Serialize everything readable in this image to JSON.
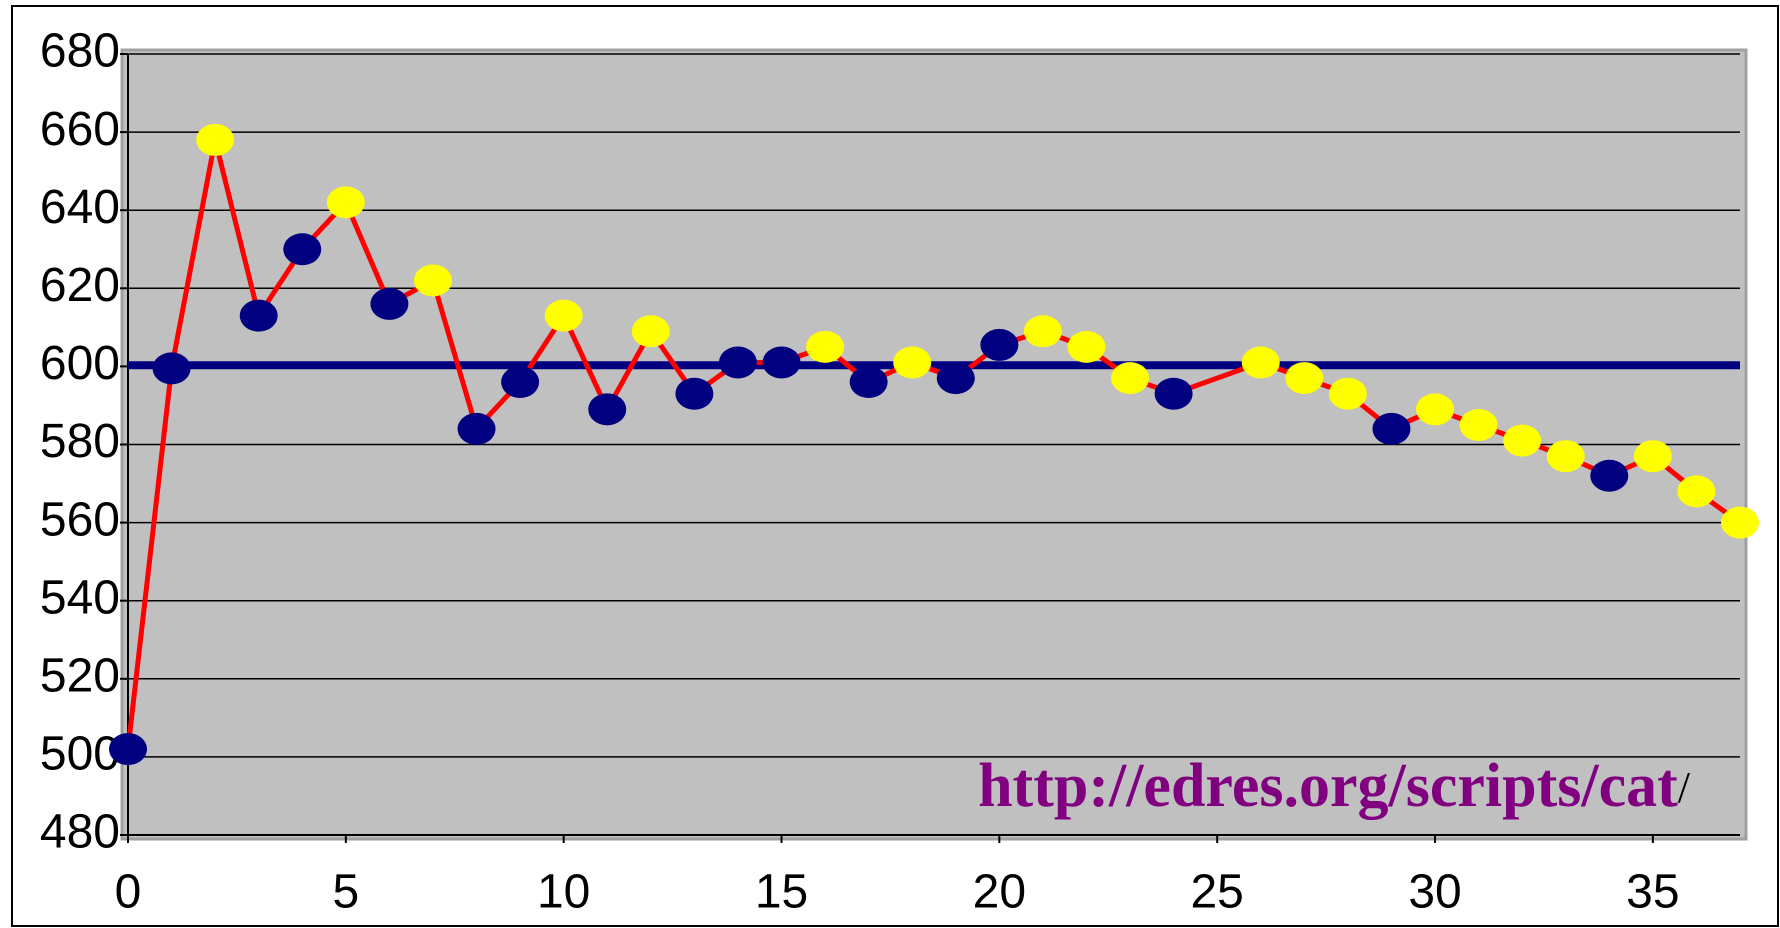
{
  "chart_data": {
    "type": "line",
    "x": [
      0,
      1,
      2,
      3,
      4,
      5,
      6,
      7,
      8,
      9,
      10,
      11,
      12,
      13,
      14,
      15,
      16,
      17,
      18,
      19,
      20,
      21,
      22,
      23,
      24,
      26,
      27,
      28,
      29,
      30,
      31,
      32,
      33,
      34,
      35,
      36,
      37
    ],
    "series": [
      {
        "color": "#ff0000",
        "values": [
          502,
          599.5,
          658,
          613,
          630,
          642,
          616,
          622,
          584,
          596,
          613,
          589,
          609,
          593,
          601,
          601,
          605,
          596,
          601,
          597,
          605.5,
          609,
          605,
          597,
          593,
          601,
          597,
          593,
          584,
          589,
          585,
          581,
          577,
          572,
          577,
          568,
          560
        ],
        "point_colors": [
          "#000080",
          "#000080",
          "#ffff00",
          "#000080",
          "#000080",
          "#ffff00",
          "#000080",
          "#ffff00",
          "#000080",
          "#000080",
          "#ffff00",
          "#000080",
          "#ffff00",
          "#000080",
          "#000080",
          "#000080",
          "#ffff00",
          "#000080",
          "#ffff00",
          "#000080",
          "#000080",
          "#ffff00",
          "#ffff00",
          "#ffff00",
          "#000080",
          "#ffff00",
          "#ffff00",
          "#ffff00",
          "#000080",
          "#ffff00",
          "#ffff00",
          "#ffff00",
          "#ffff00",
          "#000080",
          "#ffff00",
          "#ffff00",
          "#ffff00"
        ]
      }
    ],
    "reference_line": {
      "value": 600.3,
      "color": "#000080"
    },
    "annotation": [
      "http://edres.org/scripts/cat",
      "/"
    ],
    "xlim": [
      0,
      37
    ],
    "xticks": [
      0,
      5,
      10,
      15,
      20,
      25,
      30,
      35
    ],
    "ylim": [
      480,
      680
    ],
    "yticks": [
      480,
      500,
      520,
      540,
      560,
      580,
      600,
      620,
      640,
      660,
      680
    ],
    "grid": true,
    "background": "#c0c0c0"
  }
}
